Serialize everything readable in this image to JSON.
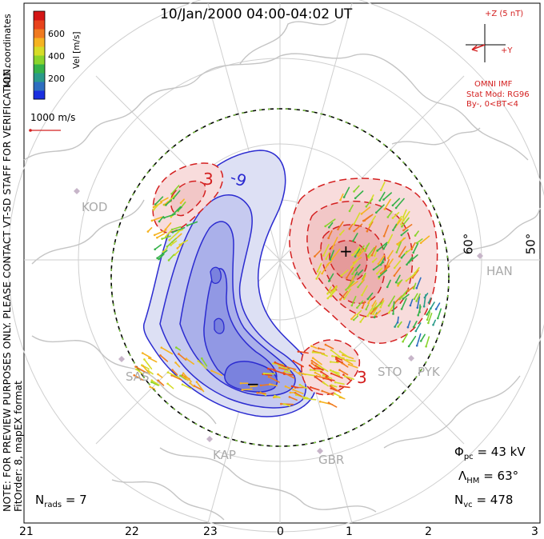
{
  "title": "10/Jan/2000 04:00-04:02 UT",
  "side_note": {
    "line1": "NOTE: FOR PREVIEW PURPOSES ONLY. PLEASE CONTACT VT-SD STAFF FOR VERIFICATION.",
    "line2": "FitOrder: 8, mapEX format"
  },
  "coord_label": "MLT coordinates",
  "colorbar": {
    "title": "Vel [m/s]",
    "ticks": [
      "600",
      "400",
      "200"
    ],
    "colors": [
      "#1a2fe0",
      "#2e6ec0",
      "#2a9a8a",
      "#35b24a",
      "#8ad42c",
      "#d6dc28",
      "#f5b321",
      "#f07a20",
      "#e8431c",
      "#d41616"
    ]
  },
  "vector_ref": "1000 m/s",
  "imf": {
    "z_label": "+Z (5 nT)",
    "y_label": "+Y",
    "source": "OMNI IMF",
    "stat_mod": "Stat Mod: RG96",
    "condition": "By-, 0<BT<4"
  },
  "stats": {
    "phi_sym": "Φ",
    "phi_sub": "pc",
    "phi_val": "= 43 kV",
    "lam_sym": "Λ",
    "lam_sub": "HM",
    "lam_val": "= 63°",
    "nvc_sym": "N",
    "nvc_sub": "vc",
    "nvc_val": "= 478",
    "nrads_sym": "N",
    "nrads_sub": "rads",
    "nrads_val": "= 7"
  },
  "mlt_hours": [
    "21",
    "22",
    "23",
    "0",
    "1",
    "2",
    "3"
  ],
  "lat_labels": [
    "60°",
    "50°"
  ],
  "contour_labels": {
    "neg": "-9",
    "pos_top": "3",
    "pos_bottom": "3",
    "min_marker": "−",
    "max_marker": "+"
  },
  "sites": [
    "KOD",
    "SAS",
    "KAP",
    "GBR",
    "STO",
    "PYK",
    "HAN"
  ],
  "colors": {
    "negative_cell": "#2b2bd0",
    "positive_cell": "#d42020",
    "map": "#c4c4c4"
  }
}
